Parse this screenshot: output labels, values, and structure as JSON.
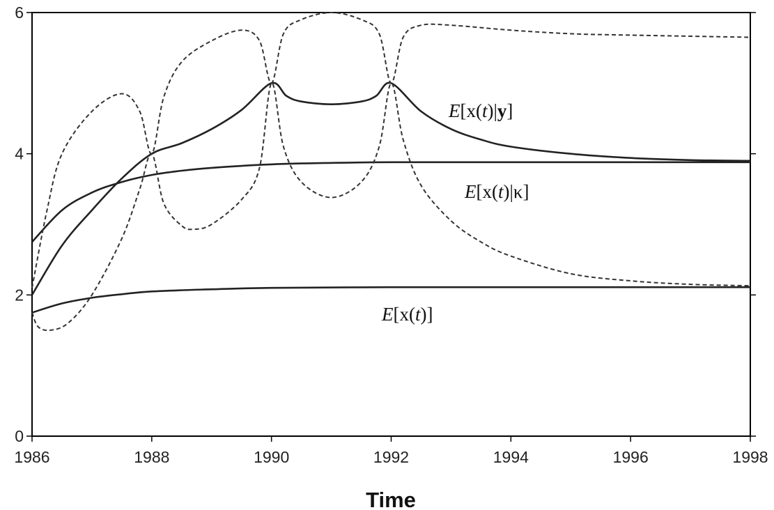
{
  "chart_data": {
    "type": "line",
    "title": "",
    "xlabel": "Time",
    "ylabel": "",
    "xlim": [
      1986,
      1998
    ],
    "ylim": [
      0,
      6
    ],
    "x_ticks": [
      "1986",
      "1988",
      "1990",
      "1992",
      "1994",
      "1996",
      "1998"
    ],
    "y_ticks": [
      "0",
      "2",
      "4",
      "6"
    ],
    "grid": false,
    "series": [
      {
        "name": "E[x(t)|y]",
        "style": "solid",
        "label_parts": [
          "E",
          "[x(",
          "t",
          ")|",
          "y",
          "]"
        ],
        "x": [
          1986,
          1986.5,
          1987,
          1987.5,
          1988,
          1988.5,
          1989,
          1989.5,
          1990,
          1990.25,
          1990.5,
          1991,
          1991.5,
          1991.75,
          1992,
          1992.5,
          1993,
          1993.5,
          1994,
          1995,
          1996,
          1997,
          1998
        ],
        "y": [
          2.0,
          2.7,
          3.2,
          3.65,
          4.0,
          4.15,
          4.35,
          4.62,
          5.0,
          4.82,
          4.74,
          4.7,
          4.74,
          4.82,
          5.0,
          4.6,
          4.35,
          4.2,
          4.1,
          4.0,
          3.94,
          3.91,
          3.9
        ]
      },
      {
        "name": "E[x(t)|κ]",
        "style": "solid",
        "label_parts": [
          "E",
          "[x(",
          "t",
          ")|",
          "κ",
          "]"
        ],
        "x": [
          1986,
          1986.5,
          1987,
          1987.5,
          1988,
          1988.5,
          1989,
          1990,
          1991,
          1992,
          1994,
          1996,
          1998
        ],
        "y": [
          2.75,
          3.2,
          3.45,
          3.6,
          3.7,
          3.76,
          3.8,
          3.85,
          3.87,
          3.88,
          3.88,
          3.88,
          3.88
        ]
      },
      {
        "name": "E[x(t)]",
        "style": "solid",
        "label_parts": [
          "E",
          "[x(",
          "t",
          ")]"
        ],
        "x": [
          1986,
          1986.5,
          1987,
          1987.5,
          1988,
          1989,
          1990,
          1992,
          1994,
          1996,
          1998
        ],
        "y": [
          1.75,
          1.88,
          1.96,
          2.01,
          2.05,
          2.08,
          2.1,
          2.11,
          2.11,
          2.11,
          2.11
        ]
      },
      {
        "name": "upper bound",
        "style": "dashed",
        "x": [
          1986,
          1986.25,
          1986.5,
          1987,
          1987.5,
          1987.8,
          1988,
          1988.2,
          1988.5,
          1989,
          1989.5,
          1989.8,
          1990,
          1990.2,
          1990.5,
          1991,
          1991.5,
          1991.8,
          1992,
          1992.2,
          1992.5,
          1993,
          1994,
          1995,
          1996,
          1998
        ],
        "y": [
          2.1,
          3.2,
          4.0,
          4.6,
          4.85,
          4.6,
          4.0,
          4.8,
          5.3,
          5.6,
          5.75,
          5.6,
          5.0,
          5.7,
          5.9,
          6.0,
          5.9,
          5.7,
          5.0,
          5.65,
          5.82,
          5.82,
          5.75,
          5.7,
          5.68,
          5.65
        ]
      },
      {
        "name": "lower bound",
        "style": "dashed",
        "x": [
          1986,
          1986.1,
          1986.3,
          1986.6,
          1987,
          1987.5,
          1987.8,
          1988,
          1988.2,
          1988.5,
          1988.7,
          1989,
          1989.5,
          1989.8,
          1990,
          1990.2,
          1990.5,
          1991,
          1991.5,
          1991.8,
          1992,
          1992.2,
          1992.5,
          1993,
          1993.5,
          1994,
          1995,
          1996,
          1997,
          1998
        ],
        "y": [
          1.75,
          1.55,
          1.5,
          1.6,
          2.0,
          2.8,
          3.5,
          4.0,
          3.3,
          2.98,
          2.93,
          3.0,
          3.35,
          3.8,
          5.0,
          4.1,
          3.6,
          3.38,
          3.6,
          4.1,
          5.0,
          4.2,
          3.55,
          3.05,
          2.75,
          2.55,
          2.3,
          2.2,
          2.15,
          2.13
        ]
      }
    ]
  }
}
